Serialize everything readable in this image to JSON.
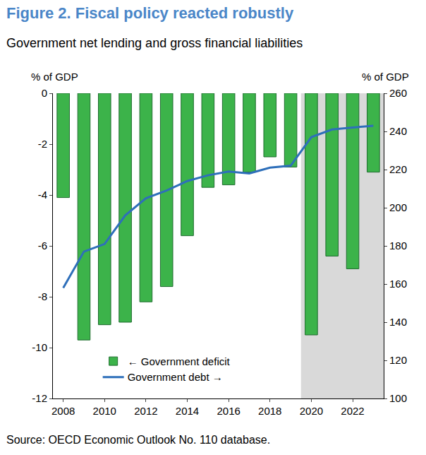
{
  "chart_data": {
    "type": "bar",
    "title": "Figure 2. Fiscal policy reacted robustly",
    "subtitle": "Government net lending and gross financial liabilities",
    "y_label": "% of GDP",
    "y2_label": "% of GDP",
    "source": "Source: OECD Economic Outlook No. 110 database.",
    "x": [
      2008,
      2009,
      2010,
      2011,
      2012,
      2013,
      2014,
      2015,
      2016,
      2017,
      2018,
      2019,
      2020,
      2021,
      2022,
      2023
    ],
    "series": [
      {
        "name": "← Government deficit",
        "type": "bar",
        "color": "#3cb34a",
        "values": [
          -4.1,
          -9.7,
          -9.1,
          -9.0,
          -8.2,
          -7.6,
          -5.6,
          -3.7,
          -3.6,
          -3.1,
          -2.5,
          -2.9,
          -9.5,
          -6.4,
          -6.9,
          -3.1
        ]
      },
      {
        "name": "Government debt →",
        "type": "line",
        "color": "#2e6fba",
        "axis": "y2",
        "values": [
          158,
          177,
          181,
          196,
          205,
          209,
          214,
          217,
          219,
          218,
          221,
          222,
          237,
          241,
          242,
          243
        ]
      }
    ],
    "xlim": [
      2007.5,
      2023.5
    ],
    "xticks": [
      2008,
      2010,
      2012,
      2014,
      2016,
      2018,
      2020,
      2022
    ],
    "ylim": [
      -12,
      0
    ],
    "yticks": [
      -12,
      -10,
      -8,
      -6,
      -4,
      -2,
      0
    ],
    "y2lim": [
      100,
      260
    ],
    "y2ticks": [
      100,
      120,
      140,
      160,
      180,
      200,
      220,
      240,
      260
    ],
    "shaded_x": [
      2019.5,
      2023.5
    ],
    "legend": "lower left",
    "grid": false
  }
}
